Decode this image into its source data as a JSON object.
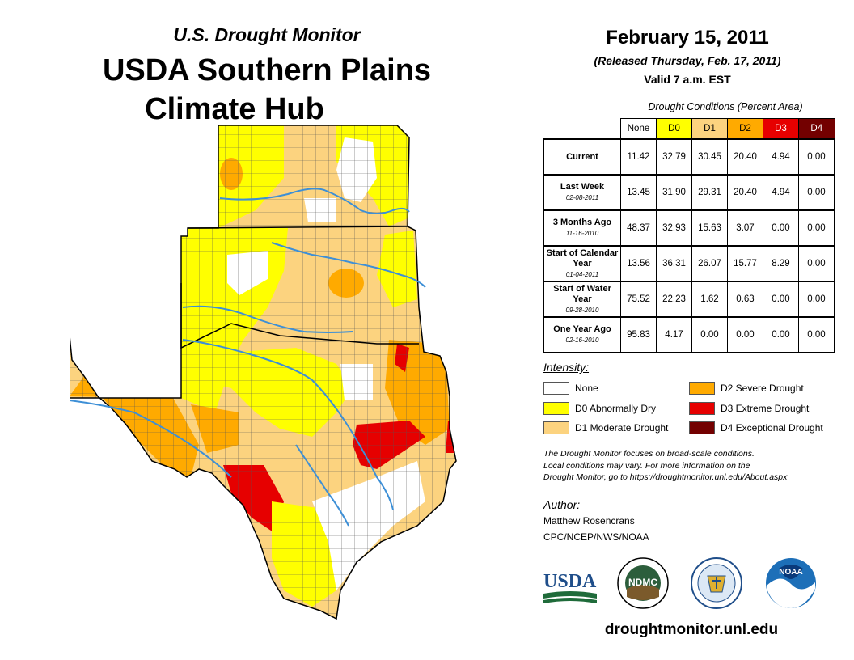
{
  "header": {
    "subtitle": "U.S. Drought Monitor",
    "title_line1": "USDA Southern Plains",
    "title_line2": "Climate Hub"
  },
  "date_block": {
    "date": "February 15, 2011",
    "released": "(Released Thursday, Feb. 17, 2011)",
    "valid": "Valid 7 a.m. EST"
  },
  "conditions_table": {
    "title": "Drought Conditions (Percent Area)",
    "columns": [
      {
        "label": "None",
        "color": "#ffffff",
        "text_color": "#000000"
      },
      {
        "label": "D0",
        "color": "#ffff00",
        "text_color": "#000000"
      },
      {
        "label": "D1",
        "color": "#fcd37f",
        "text_color": "#000000"
      },
      {
        "label": "D2",
        "color": "#ffaa00",
        "text_color": "#000000"
      },
      {
        "label": "D3",
        "color": "#e60000",
        "text_color": "#ffffff"
      },
      {
        "label": "D4",
        "color": "#730000",
        "text_color": "#ffffff"
      }
    ],
    "rows": [
      {
        "label": "Current",
        "date": "",
        "values": [
          "11.42",
          "32.79",
          "30.45",
          "20.40",
          "4.94",
          "0.00"
        ]
      },
      {
        "label": "Last Week",
        "date": "02-08-2011",
        "values": [
          "13.45",
          "31.90",
          "29.31",
          "20.40",
          "4.94",
          "0.00"
        ]
      },
      {
        "label": "3 Months Ago",
        "date": "11-16-2010",
        "values": [
          "48.37",
          "32.93",
          "15.63",
          "3.07",
          "0.00",
          "0.00"
        ]
      },
      {
        "label": "Start of Calendar Year",
        "date": "01-04-2011",
        "values": [
          "13.56",
          "36.31",
          "26.07",
          "15.77",
          "8.29",
          "0.00"
        ]
      },
      {
        "label": "Start of Water Year",
        "date": "09-28-2010",
        "values": [
          "75.52",
          "22.23",
          "1.62",
          "0.63",
          "0.00",
          "0.00"
        ]
      },
      {
        "label": "One Year Ago",
        "date": "02-16-2010",
        "values": [
          "95.83",
          "4.17",
          "0.00",
          "0.00",
          "0.00",
          "0.00"
        ]
      }
    ]
  },
  "legend": {
    "title": "Intensity:",
    "items": [
      {
        "label": "None",
        "color": "#ffffff"
      },
      {
        "label": "D0 Abnormally Dry",
        "color": "#ffff00"
      },
      {
        "label": "D1 Moderate Drought",
        "color": "#fcd37f"
      },
      {
        "label": "D2 Severe Drought",
        "color": "#ffaa00"
      },
      {
        "label": "D3 Extreme Drought",
        "color": "#e60000"
      },
      {
        "label": "D4 Exceptional Drought",
        "color": "#730000"
      }
    ]
  },
  "note": {
    "line1": "The Drought Monitor focuses on broad-scale conditions.",
    "line2": "Local conditions may vary. For more information on the",
    "line3": "Drought Monitor, go to https://droughtmonitor.unl.edu/About.aspx"
  },
  "author": {
    "label": "Author:",
    "name": "Matthew Rosencrans",
    "org": "CPC/NCEP/NWS/NOAA"
  },
  "logos": {
    "usda": "USDA",
    "ndmc": "NDMC",
    "noaa": "NOAA"
  },
  "website": "droughtmonitor.unl.edu",
  "colors": {
    "river": "#3d8fd6",
    "county_line": "#555555",
    "state_line": "#000000"
  }
}
